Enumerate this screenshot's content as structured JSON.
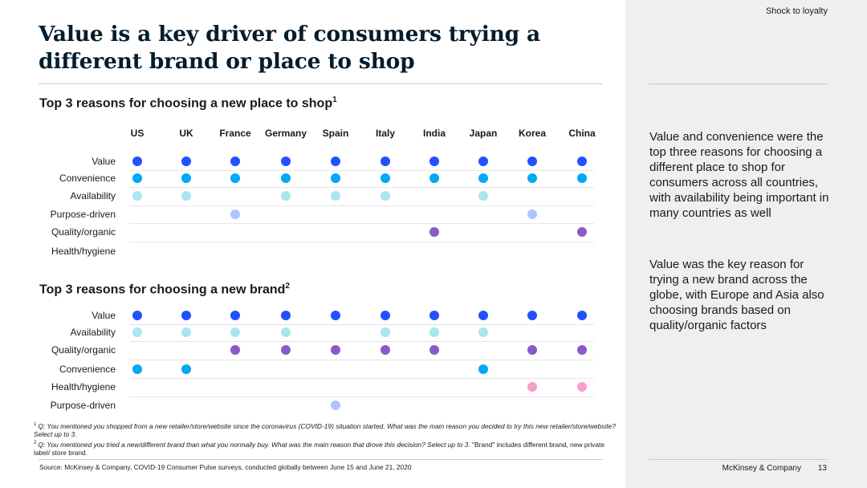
{
  "header": {
    "section_tag": "Shock to loyalty",
    "title": "Value is a key driver of consumers trying a different brand or place to shop"
  },
  "insights": [
    "Value and convenience were the top three reasons for choosing a different place to shop for consumers across all countries, with availability being important in many countries as well",
    "Value was the key reason for trying a new brand across the globe, with Europe and Asia also choosing brands based on quality/organic factors"
  ],
  "footer": {
    "footnote1_num": "1",
    "footnote1": "Q: You mentioned you shopped from a new retailer/store/website since the coronavirus (COVID-19) situation started. What was the main reason you decided to try this new retailer/store/website? Select up to 3.",
    "footnote2_num": "2",
    "footnote2": "Q: You mentioned you tried a new/different brand than what you normally buy. What was the main reason that drove this decision? Select up to 3.",
    "footnote2_tail": "\"Brand\" includes different brand, new private label/ store brand.",
    "source": "Source: McKinsey & Company, COVID-19 Consumer Pulse surveys, conducted globally between June 15 and June 21, 2020",
    "brand": "McKinsey & Company",
    "page": "13"
  },
  "chart_data": [
    {
      "type": "table",
      "title": "Top 3 reasons for choosing a new place to shop",
      "title_sup": "1",
      "columns": [
        "US",
        "UK",
        "France",
        "Germany",
        "Spain",
        "Italy",
        "India",
        "Japan",
        "Korea",
        "China"
      ],
      "rows": [
        {
          "name": "Value",
          "color": "#2251ff",
          "marks": [
            1,
            1,
            1,
            1,
            1,
            1,
            1,
            1,
            1,
            1
          ]
        },
        {
          "name": "Convenience",
          "color": "#00a9f4",
          "marks": [
            1,
            1,
            1,
            1,
            1,
            1,
            1,
            1,
            1,
            1
          ]
        },
        {
          "name": "Availability",
          "color": "#aae6f0",
          "marks": [
            1,
            1,
            0,
            1,
            1,
            1,
            0,
            1,
            0,
            0
          ]
        },
        {
          "name": "Purpose-driven",
          "color": "#afc3ff",
          "marks": [
            0,
            0,
            1,
            0,
            0,
            0,
            0,
            0,
            1,
            0
          ]
        },
        {
          "name": "Quality/organic",
          "color": "#8c5ac8",
          "marks": [
            0,
            0,
            0,
            0,
            0,
            0,
            1,
            0,
            0,
            1
          ]
        },
        {
          "name": "Health/hygiene",
          "color": "#f5a0c8",
          "marks": [
            0,
            0,
            0,
            0,
            0,
            0,
            0,
            0,
            0,
            0
          ]
        }
      ]
    },
    {
      "type": "table",
      "title": "Top 3 reasons for choosing a new brand",
      "title_sup": "2",
      "columns": [
        "US",
        "UK",
        "France",
        "Germany",
        "Spain",
        "Italy",
        "India",
        "Japan",
        "Korea",
        "China"
      ],
      "rows": [
        {
          "name": "Value",
          "color": "#2251ff",
          "marks": [
            1,
            1,
            1,
            1,
            1,
            1,
            1,
            1,
            1,
            1
          ]
        },
        {
          "name": "Availability",
          "color": "#aae6f0",
          "marks": [
            1,
            1,
            1,
            1,
            0,
            1,
            1,
            1,
            0,
            0
          ]
        },
        {
          "name": "Quality/organic",
          "color": "#8c5ac8",
          "marks": [
            0,
            0,
            1,
            1,
            1,
            1,
            1,
            0,
            1,
            1
          ]
        },
        {
          "name": "Convenience",
          "color": "#00a9f4",
          "marks": [
            1,
            1,
            0,
            0,
            0,
            0,
            0,
            1,
            0,
            0
          ]
        },
        {
          "name": "Health/hygiene",
          "color": "#f5a0c8",
          "marks": [
            0,
            0,
            0,
            0,
            0,
            0,
            0,
            0,
            1,
            1
          ]
        },
        {
          "name": "Purpose-driven",
          "color": "#afc3ff",
          "marks": [
            0,
            0,
            0,
            0,
            1,
            0,
            0,
            0,
            0,
            0
          ]
        }
      ]
    }
  ]
}
